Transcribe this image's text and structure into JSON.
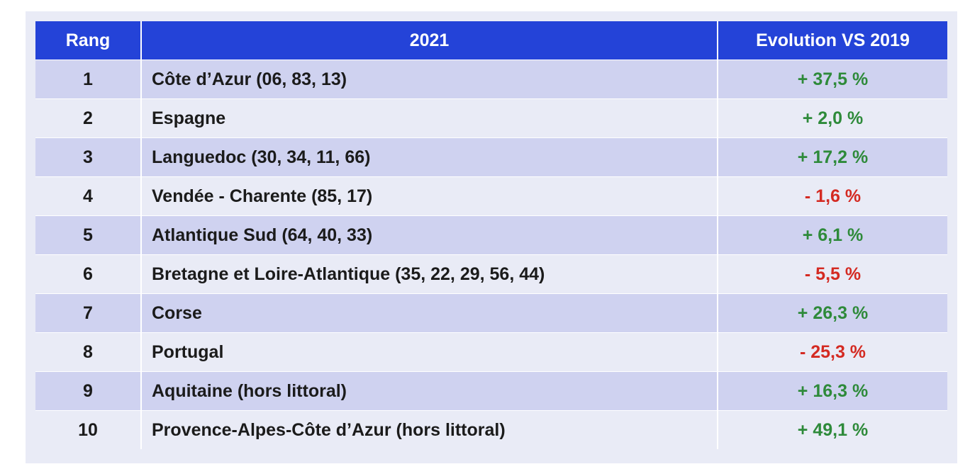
{
  "table": {
    "headers": {
      "rank": "Rang",
      "year": "2021",
      "evolution": "Evolution VS 2019"
    },
    "rows": [
      {
        "rank": "1",
        "name": "Côte d’Azur (06, 83, 13)",
        "evolution": "+ 37,5 %",
        "trend": "pos"
      },
      {
        "rank": "2",
        "name": "Espagne",
        "evolution": "+ 2,0 %",
        "trend": "pos"
      },
      {
        "rank": "3",
        "name": "Languedoc (30, 34, 11, 66)",
        "evolution": "+ 17,2 %",
        "trend": "pos"
      },
      {
        "rank": "4",
        "name": "Vendée - Charente (85, 17)",
        "evolution": "- 1,6 %",
        "trend": "neg"
      },
      {
        "rank": "5",
        "name": "Atlantique Sud (64, 40, 33)",
        "evolution": "+ 6,1 %",
        "trend": "pos"
      },
      {
        "rank": "6",
        "name": "Bretagne et Loire-Atlantique (35, 22, 29, 56, 44)",
        "evolution": "- 5,5 %",
        "trend": "neg"
      },
      {
        "rank": "7",
        "name": "Corse",
        "evolution": "+ 26,3 %",
        "trend": "pos"
      },
      {
        "rank": "8",
        "name": "Portugal",
        "evolution": "- 25,3 %",
        "trend": "neg"
      },
      {
        "rank": "9",
        "name": "Aquitaine (hors littoral)",
        "evolution": "+ 16,3 %",
        "trend": "pos"
      },
      {
        "rank": "10",
        "name": "Provence-Alpes-Côte d’Azur (hors littoral)",
        "evolution": "+ 49,1 %",
        "trend": "pos"
      }
    ]
  },
  "colors": {
    "header_bg": "#2443d8",
    "row_odd_bg": "#cfd2f0",
    "row_even_bg": "#e9ebf6",
    "positive": "#2e8a3a",
    "negative": "#d42a22"
  }
}
